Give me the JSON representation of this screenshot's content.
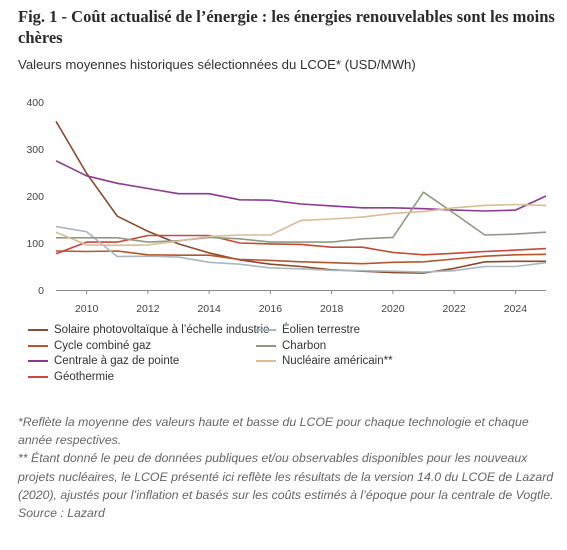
{
  "header": {
    "title": "Fig. 1 - Coût actualisé de l’énergie : les énergies renouvelables sont les moins chères",
    "subtitle": "Valeurs moyennes historiques sélectionnées du LCOE* (USD/MWh)"
  },
  "notes": {
    "note1": "*Reflète la moyenne des valeurs haute et basse du LCOE pour chaque technologie et chaque année respectives.",
    "note2": "** Étant donné le peu de données publiques et/ou observables disponibles pour les nouveaux projets nucléaires, le LCOE présenté ici reflète les résultats de la version 14.0 du LCOE de Lazard (2020), ajustés pour l’inflation et basés sur les coûts estimés à l’époque pour la centrale de Vogtle.",
    "source": "Source : Lazard"
  },
  "chart_data": {
    "type": "line",
    "title": "",
    "xlabel": "",
    "ylabel": "",
    "xlim": [
      2009,
      2025
    ],
    "ylim": [
      0,
      400
    ],
    "x_ticks": [
      2010,
      2012,
      2014,
      2016,
      2018,
      2020,
      2022,
      2024
    ],
    "y_ticks": [
      0,
      100,
      200,
      300,
      400
    ],
    "grid": false,
    "legend_position": "bottom",
    "x": [
      2009,
      2010,
      2011,
      2012,
      2013,
      2014,
      2015,
      2016,
      2017,
      2018,
      2019,
      2020,
      2021,
      2022,
      2023,
      2024,
      2025
    ],
    "series": [
      {
        "name": "Solaire photovoltaïque à l’échelle industrie",
        "color": "#8b4a2b",
        "values": [
          359,
          248,
          157,
          125,
          98,
          79,
          64,
          55,
          50,
          43,
          40,
          37,
          36,
          46,
          60,
          61,
          61
        ]
      },
      {
        "name": "Cycle combiné gaz",
        "color": "#b5562a",
        "values": [
          83,
          82,
          83,
          75,
          74,
          74,
          65,
          63,
          60,
          58,
          56,
          59,
          60,
          66,
          72,
          75,
          76
        ]
      },
      {
        "name": "Centrale à gaz de pointe",
        "color": "#8b3a8f",
        "values": [
          275,
          243,
          227,
          216,
          205,
          205,
          192,
          191,
          183,
          179,
          175,
          175,
          173,
          170,
          168,
          170,
          200
        ]
      },
      {
        "name": "Géothermie",
        "color": "#c44a3a",
        "values": [
          77,
          102,
          102,
          116,
          116,
          116,
          100,
          98,
          97,
          91,
          91,
          80,
          75,
          78,
          82,
          85,
          88
        ]
      },
      {
        "name": "Éolien terrestre",
        "color": "#a9b7c0",
        "values": [
          135,
          124,
          71,
          72,
          70,
          59,
          55,
          47,
          45,
          42,
          41,
          40,
          38,
          41,
          50,
          50,
          58
        ]
      },
      {
        "name": "Charbon",
        "color": "#8f9a84",
        "values": [
          111,
          111,
          111,
          102,
          105,
          112,
          109,
          102,
          102,
          102,
          109,
          112,
          208,
          163,
          117,
          119,
          123
        ]
      },
      {
        "name": "Nucléaire américain**",
        "color": "#d7bd98",
        "values": [
          123,
          96,
          95,
          96,
          104,
          114,
          117,
          117,
          148,
          151,
          155,
          163,
          167,
          175,
          180,
          182,
          180
        ]
      }
    ]
  }
}
